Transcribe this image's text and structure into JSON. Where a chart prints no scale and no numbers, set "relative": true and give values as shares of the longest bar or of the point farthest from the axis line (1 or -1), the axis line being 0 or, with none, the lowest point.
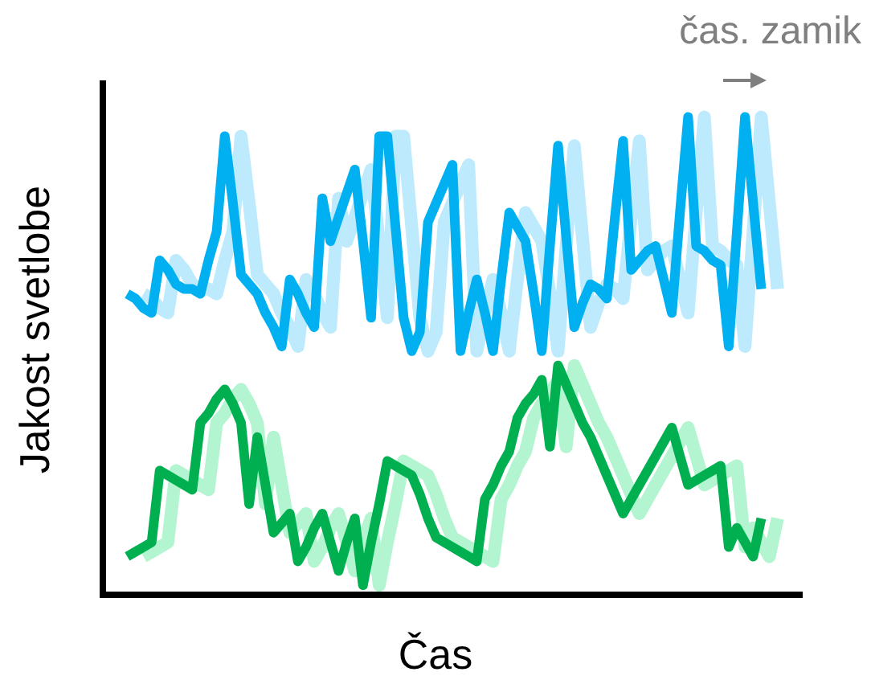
{
  "chart_data": {
    "type": "line",
    "relative": true,
    "xlabel": "Čas",
    "ylabel": "Jakost svetlobe",
    "annotations": [
      "čas. zamik"
    ],
    "tick_labels": false,
    "marker": "none",
    "categories": [
      null,
      null,
      null,
      null,
      null,
      null,
      null,
      null,
      null,
      null,
      null,
      null,
      null,
      null,
      null,
      null,
      null,
      null,
      null,
      null,
      null,
      null,
      null,
      null,
      null,
      null,
      null,
      null,
      null,
      null,
      null,
      null,
      null,
      null,
      null,
      null,
      null,
      null,
      null,
      null,
      null,
      null,
      null,
      null,
      null,
      null,
      null,
      null,
      null,
      null,
      null,
      null,
      null,
      null,
      null,
      null,
      null,
      null,
      null,
      null,
      null,
      null,
      null,
      null,
      null,
      null,
      null,
      null,
      null,
      null,
      null,
      null,
      null,
      null,
      null,
      null,
      null,
      null,
      null,
      null,
      null,
      null,
      null,
      null,
      null,
      null,
      null
    ],
    "series": [
      {
        "color": "#00b0f0",
        "values": [
          null,
          null,
          null,
          0.63,
          0.62,
          0.6,
          0.59,
          0.7,
          0.68,
          0.65,
          0.64,
          0.64,
          0.63,
          0.7,
          0.76,
          0.96,
          0.82,
          0.67,
          0.65,
          0.63,
          0.59,
          0.56,
          0.52,
          0.66,
          0.63,
          0.59,
          0.56,
          0.83,
          0.74,
          0.79,
          0.84,
          0.89,
          0.74,
          0.58,
          0.96,
          0.96,
          0.77,
          0.58,
          0.51,
          0.55,
          0.78,
          0.82,
          0.86,
          0.9,
          0.51,
          0.59,
          0.66,
          0.59,
          0.51,
          0.66,
          0.8,
          0.77,
          0.74,
          0.63,
          0.51,
          0.73,
          0.94,
          0.75,
          0.56,
          0.61,
          0.65,
          0.64,
          0.62,
          0.79,
          0.95,
          0.68,
          0.7,
          0.72,
          0.73,
          0.66,
          0.59,
          0.8,
          1,
          0.73,
          0.72,
          0.7,
          0.69,
          0.52,
          0.76,
          1,
          0.82,
          0.64,
          null,
          null,
          null,
          null,
          null
        ]
      },
      {
        "color": "#bdeafc",
        "values": [
          null,
          null,
          null,
          null,
          null,
          0.63,
          0.62,
          0.6,
          0.59,
          0.7,
          0.68,
          0.65,
          0.64,
          0.64,
          0.63,
          0.7,
          0.76,
          0.96,
          0.82,
          0.67,
          0.65,
          0.63,
          0.59,
          0.56,
          0.52,
          0.66,
          0.63,
          0.59,
          0.56,
          0.83,
          0.74,
          0.79,
          0.84,
          0.89,
          0.74,
          0.58,
          0.96,
          0.96,
          0.77,
          0.58,
          0.51,
          0.55,
          0.78,
          0.82,
          0.86,
          0.9,
          0.51,
          0.59,
          0.66,
          0.59,
          0.51,
          0.66,
          0.8,
          0.77,
          0.74,
          0.63,
          0.51,
          0.73,
          0.94,
          0.75,
          0.56,
          0.61,
          0.65,
          0.64,
          0.62,
          0.79,
          0.95,
          0.68,
          0.7,
          0.72,
          0.73,
          0.66,
          0.59,
          0.8,
          1,
          0.73,
          0.72,
          0.7,
          0.69,
          0.52,
          0.76,
          1,
          0.82,
          0.64,
          null,
          null,
          null
        ]
      },
      {
        "color": "#00b050",
        "values": [
          null,
          null,
          null,
          0.08,
          0.09,
          0.1,
          0.11,
          0.26,
          0.25,
          0.24,
          0.23,
          0.22,
          0.36,
          0.38,
          0.41,
          0.43,
          0.4,
          0.36,
          0.19,
          0.33,
          0.23,
          0.13,
          0.15,
          0.17,
          0.07,
          0.1,
          0.14,
          0.17,
          0.11,
          0.05,
          0.11,
          0.16,
          0.02,
          0.11,
          0.19,
          0.28,
          0.27,
          0.26,
          0.25,
          0.21,
          0.16,
          0.12,
          0.11,
          0.1,
          0.09,
          0.08,
          0.07,
          0.2,
          0.23,
          0.27,
          0.3,
          0.37,
          0.4,
          0.42,
          0.45,
          0.31,
          0.48,
          0.44,
          0.4,
          0.36,
          0.33,
          0.29,
          0.25,
          0.21,
          0.17,
          0.2,
          0.23,
          0.26,
          0.29,
          0.32,
          0.35,
          0.29,
          0.23,
          0.24,
          0.25,
          0.26,
          0.27,
          0.1,
          0.14,
          0.11,
          0.08,
          0.16,
          null,
          null,
          null,
          null,
          null
        ]
      },
      {
        "color": "#b3f5d0",
        "values": [
          null,
          null,
          null,
          null,
          null,
          0.08,
          0.09,
          0.1,
          0.11,
          0.26,
          0.25,
          0.24,
          0.23,
          0.22,
          0.36,
          0.38,
          0.41,
          0.43,
          0.4,
          0.36,
          0.19,
          0.33,
          0.23,
          0.13,
          0.15,
          0.17,
          0.07,
          0.1,
          0.14,
          0.17,
          0.11,
          0.05,
          0.11,
          0.16,
          0.02,
          0.11,
          0.19,
          0.28,
          0.27,
          0.26,
          0.25,
          0.21,
          0.16,
          0.12,
          0.11,
          0.1,
          0.09,
          0.08,
          0.07,
          0.2,
          0.23,
          0.27,
          0.3,
          0.37,
          0.4,
          0.42,
          0.45,
          0.31,
          0.48,
          0.44,
          0.4,
          0.36,
          0.33,
          0.29,
          0.25,
          0.21,
          0.17,
          0.2,
          0.23,
          0.26,
          0.29,
          0.32,
          0.35,
          0.29,
          0.23,
          0.24,
          0.25,
          0.26,
          0.27,
          0.1,
          0.14,
          0.11,
          0.08,
          0.16,
          null,
          null,
          null
        ]
      }
    ]
  }
}
